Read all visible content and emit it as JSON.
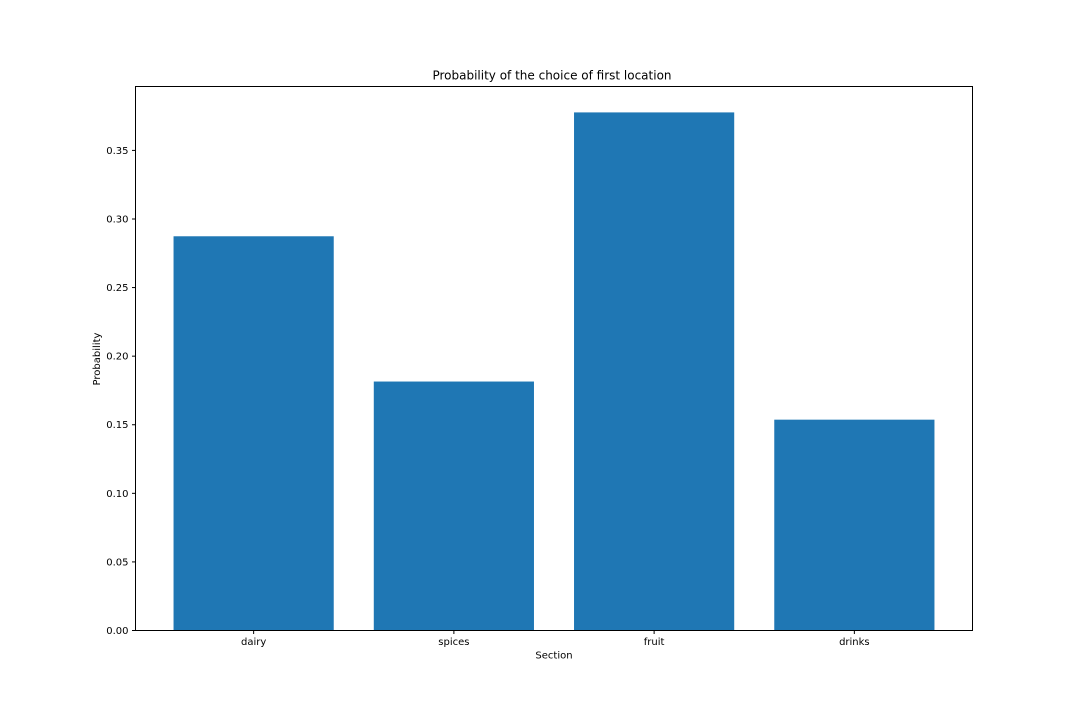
{
  "chart_data": {
    "type": "bar",
    "title": "Probability of the choice of first location",
    "xlabel": "Section",
    "ylabel": "Probability",
    "categories": [
      "dairy",
      "spices",
      "fruit",
      "drinks"
    ],
    "values": [
      0.2874,
      0.1815,
      0.3777,
      0.1537
    ],
    "ylim": [
      0,
      0.3777
    ],
    "yticks": [
      0.0,
      0.05,
      0.1,
      0.15,
      0.2,
      0.25,
      0.3,
      0.35
    ],
    "ytick_labels": [
      "0.00",
      "0.05",
      "0.10",
      "0.15",
      "0.20",
      "0.25",
      "0.30",
      "0.35"
    ],
    "grid": false,
    "bar_color": "#1f77b4"
  }
}
